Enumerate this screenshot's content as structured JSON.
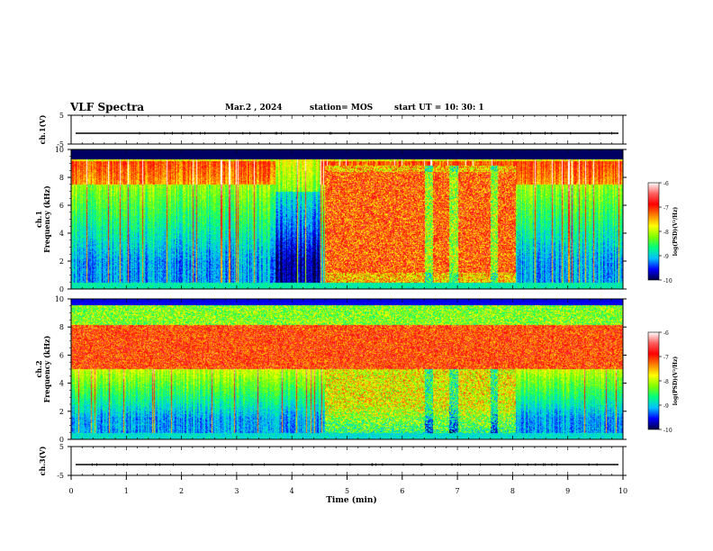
{
  "header": {
    "title": "VLF Spectra",
    "date": "Mar.2  , 2024",
    "station": "station= MOS",
    "start": "start  UT  =   10: 30: 1"
  },
  "chart_data": {
    "type": "heatmap",
    "xlabel": "Time  (min)",
    "xlim": [
      0,
      10
    ],
    "xticks": [
      "0",
      "1",
      "2",
      "3",
      "4",
      "5",
      "6",
      "7",
      "8",
      "9",
      "10"
    ],
    "panels": [
      {
        "kind": "waveform",
        "ylabel": "ch.1(V)",
        "ylim": [
          -5,
          5
        ],
        "yticks": [
          "5",
          "-5"
        ]
      },
      {
        "kind": "spectrogram",
        "ylabel": "ch.1\nFrequency  (kHz)",
        "ylim": [
          0,
          10
        ],
        "yticks": [
          "0",
          "2",
          "4",
          "6",
          "8",
          "10"
        ],
        "features": [
          {
            "name": "broadband-burst",
            "t_start": 4.6,
            "t_end": 8.05,
            "f_low": 0.4,
            "f_high": 8.8
          },
          {
            "name": "noise-band",
            "f_low": 7.5,
            "f_high": 9.2
          }
        ]
      },
      {
        "kind": "spectrogram",
        "ylabel": "ch.2\nFrequency  (kHz)",
        "ylim": [
          0,
          10
        ],
        "yticks": [
          "0",
          "2",
          "4",
          "6",
          "8",
          "10"
        ],
        "features": [
          {
            "name": "persistent-band",
            "f_low": 5.0,
            "f_high": 8.0
          },
          {
            "name": "broadband-burst",
            "t_start": 4.6,
            "t_end": 8.05,
            "f_low": 0.4,
            "f_high": 8.0
          }
        ]
      },
      {
        "kind": "waveform",
        "ylabel": "ch.3(V)",
        "ylim": [
          -5,
          5
        ],
        "yticks": [
          "5",
          "-5"
        ]
      }
    ],
    "colorbar": {
      "label": "log(PSD)(V²/Hz)",
      "range": [
        -10,
        -6
      ],
      "ticks": [
        "-6",
        "-7",
        "-8",
        "-9",
        "-10"
      ],
      "colors": [
        "#000040",
        "#0000ff",
        "#00c0ff",
        "#00ff80",
        "#80ff00",
        "#ffff00",
        "#ff8000",
        "#ff0000",
        "#ff6060",
        "#ffffff"
      ]
    }
  }
}
